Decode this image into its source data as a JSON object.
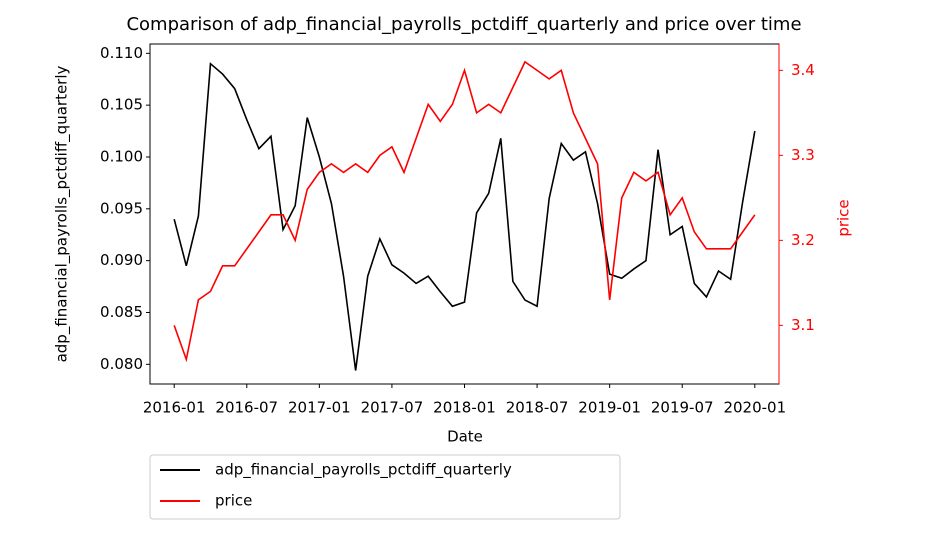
{
  "chart_data": {
    "type": "line",
    "title": "Comparison of adp_financial_payrolls_pctdiff_quarterly and price over time",
    "x_label": "Date",
    "y_label": "adp_financial_payrolls_pctdiff_quarterly",
    "y2_label": "price",
    "x": [
      "2016-01",
      "2016-02",
      "2016-03",
      "2016-04",
      "2016-05",
      "2016-06",
      "2016-07",
      "2016-08",
      "2016-09",
      "2016-10",
      "2016-11",
      "2016-12",
      "2017-01",
      "2017-02",
      "2017-03",
      "2017-04",
      "2017-05",
      "2017-06",
      "2017-07",
      "2017-08",
      "2017-09",
      "2017-10",
      "2017-11",
      "2017-12",
      "2018-01",
      "2018-02",
      "2018-03",
      "2018-04",
      "2018-05",
      "2018-06",
      "2018-07",
      "2018-08",
      "2018-09",
      "2018-10",
      "2018-11",
      "2018-12",
      "2019-01",
      "2019-02",
      "2019-03",
      "2019-04",
      "2019-05",
      "2019-06",
      "2019-07",
      "2019-08",
      "2019-09",
      "2019-10",
      "2019-11",
      "2019-12",
      "2020-01"
    ],
    "series": [
      {
        "name": "adp_financial_payrolls_pctdiff_quarterly",
        "color": "#000000",
        "axis": "y",
        "values": [
          0.094,
          0.0895,
          0.0943,
          0.109,
          0.108,
          0.1066,
          0.1036,
          0.1008,
          0.102,
          0.093,
          0.0953,
          0.1038,
          0.1,
          0.0955,
          0.0885,
          0.0794,
          0.0885,
          0.0921,
          0.0896,
          0.0888,
          0.0878,
          0.0885,
          0.087,
          0.0856,
          0.086,
          0.0946,
          0.0965,
          0.1018,
          0.088,
          0.0862,
          0.0856,
          0.096,
          0.1013,
          0.0997,
          0.1005,
          0.0955,
          0.0887,
          0.0883,
          0.0892,
          0.09,
          0.1007,
          0.0925,
          0.0933,
          0.0878,
          0.0865,
          0.089,
          0.0882,
          0.0957,
          0.1025
        ]
      },
      {
        "name": "price",
        "color": "#ff0000",
        "axis": "y2",
        "values": [
          3.1,
          3.06,
          3.13,
          3.14,
          3.17,
          3.17,
          3.19,
          3.21,
          3.23,
          3.23,
          3.2,
          3.26,
          3.28,
          3.29,
          3.28,
          3.29,
          3.28,
          3.3,
          3.31,
          3.28,
          3.32,
          3.36,
          3.34,
          3.36,
          3.4,
          3.35,
          3.36,
          3.35,
          3.38,
          3.41,
          3.4,
          3.39,
          3.4,
          3.35,
          3.32,
          3.29,
          3.13,
          3.25,
          3.28,
          3.27,
          3.28,
          3.23,
          3.25,
          3.21,
          3.19,
          3.19,
          3.19,
          3.21,
          3.23
        ]
      }
    ],
    "xlim": [
      "2015-11",
      "2020-03"
    ],
    "xticks": [
      "2016-01",
      "2016-07",
      "2017-01",
      "2017-07",
      "2018-01",
      "2018-07",
      "2019-01",
      "2019-07",
      "2020-01"
    ],
    "ylim": [
      0.0781,
      0.1109
    ],
    "yticks": [
      {
        "value": 0.08,
        "label": "0.080"
      },
      0.085,
      {
        "value": 0.09,
        "label": "0.090"
      },
      0.095,
      {
        "value": 0.1,
        "label": "0.100"
      },
      0.105,
      {
        "value": 0.11,
        "label": "0.110"
      }
    ],
    "y2lim": [
      3.031,
      3.431
    ],
    "y2ticks": [
      3.1,
      3.2,
      3.3,
      3.4
    ],
    "legend": "below"
  }
}
